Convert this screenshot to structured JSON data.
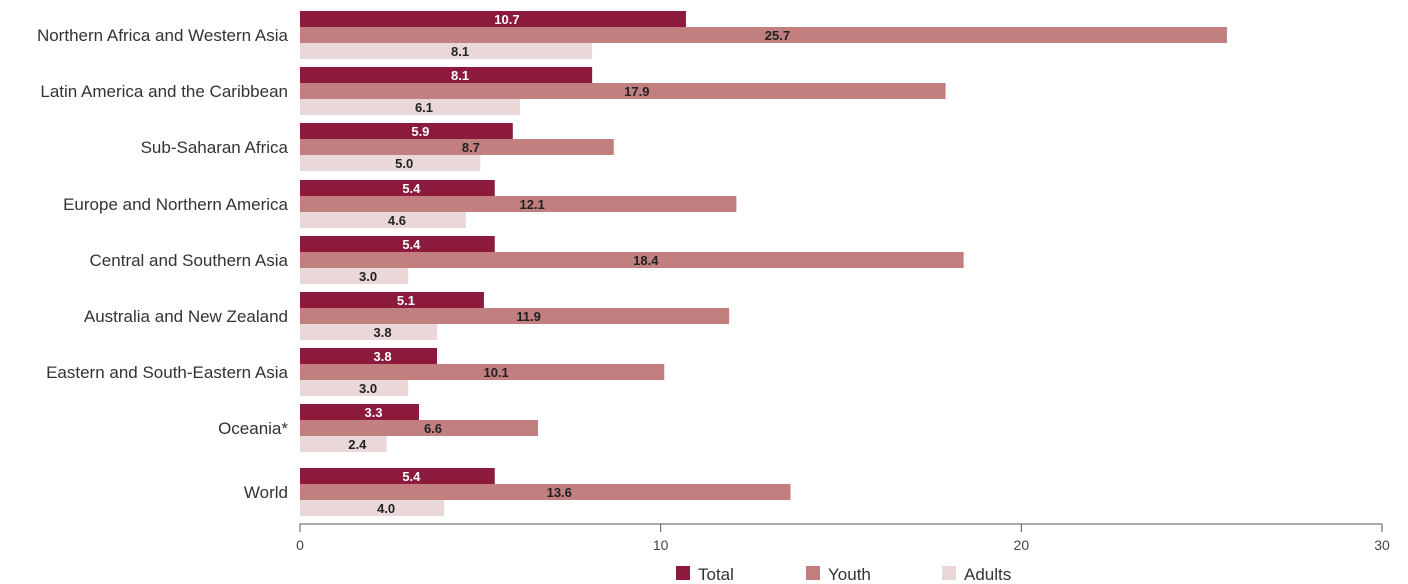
{
  "chart_data": {
    "type": "bar",
    "orientation": "horizontal",
    "categories": [
      "Northern Africa and Western Asia",
      "Latin America and the Caribbean",
      "Sub-Saharan Africa",
      "Europe and Northern America",
      "Central and Southern Asia",
      "Australia and New Zealand",
      "Eastern and South-Eastern Asia",
      "Oceania*",
      "World"
    ],
    "series": [
      {
        "name": "Total",
        "color": "#8b1a3c",
        "values": [
          10.7,
          8.1,
          5.9,
          5.4,
          5.4,
          5.1,
          3.8,
          3.3,
          5.4
        ]
      },
      {
        "name": "Youth",
        "color": "#c17f7f",
        "values": [
          25.7,
          17.9,
          8.7,
          12.1,
          18.4,
          11.9,
          10.1,
          6.6,
          13.6
        ]
      },
      {
        "name": "Adults",
        "color": "#ead7d7",
        "values": [
          8.1,
          6.1,
          5.0,
          4.6,
          3.0,
          3.8,
          3.0,
          2.4,
          4.0
        ]
      }
    ],
    "value_labels": [
      [
        "10.7",
        "8.1",
        "5.9",
        "5.4",
        "5.4",
        "5.1",
        "3.8",
        "3.3",
        "5.4"
      ],
      [
        "25.7",
        "17.9",
        "8.7",
        "12.1",
        "18.4",
        "11.9",
        "10.1",
        "6.6",
        "13.6"
      ],
      [
        "8.1",
        "6.1",
        "5.0",
        "4.6",
        "3.0",
        "3.8",
        "3.0",
        "2.4",
        "4.0"
      ]
    ],
    "xlim": [
      0,
      30
    ],
    "xticks": [
      0,
      10,
      20,
      30
    ],
    "xtick_labels": [
      "0",
      "10",
      "20",
      "30"
    ],
    "grid": false,
    "legend_position": "bottom-center",
    "title": "",
    "xlabel": "",
    "ylabel": ""
  }
}
